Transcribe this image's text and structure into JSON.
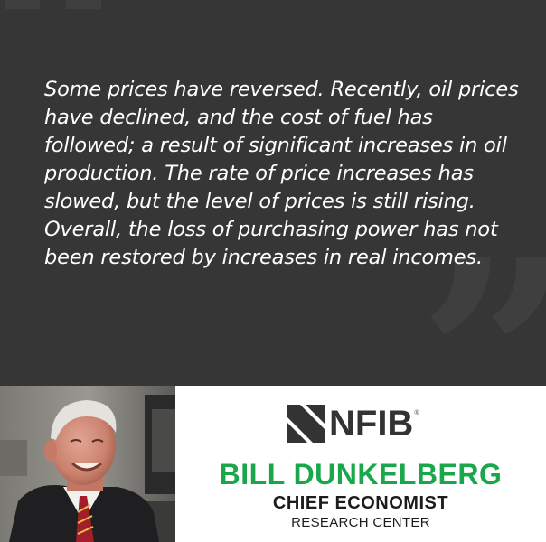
{
  "quote": {
    "text": "Some prices have reversed. Recently, oil prices have declined, and the cost of fuel has followed; a result of significant increases in oil production. The rate of price increases has slowed, but the level of prices is still rising. Overall, the loss of purchasing power has not been restored by increases in real incomes."
  },
  "brand": {
    "logo_text": "NFIB",
    "registered": "®"
  },
  "speaker": {
    "name": "BILL DUNKELBERG",
    "title": "CHIEF ECONOMIST",
    "department": "RESEARCH CENTER"
  },
  "colors": {
    "panel": "#363636",
    "quote_mark": "#3f3f3f",
    "name_green": "#1aa64a",
    "logo_dark": "#333333"
  },
  "icons": {
    "open_quote": "open-quote-icon",
    "close_quote": "close-quote-icon",
    "logo_mark": "nfib-logo-mark-icon"
  }
}
